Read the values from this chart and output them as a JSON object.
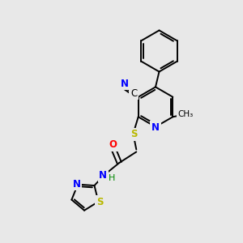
{
  "background_color": "#e8e8e8",
  "bond_color": "#000000",
  "atom_colors": {
    "N": "#0000ff",
    "O": "#ff0000",
    "S": "#b8b800",
    "C": "#000000",
    "H": "#008800"
  },
  "figsize": [
    3.0,
    3.0
  ],
  "dpi": 100,
  "lw": 1.4
}
